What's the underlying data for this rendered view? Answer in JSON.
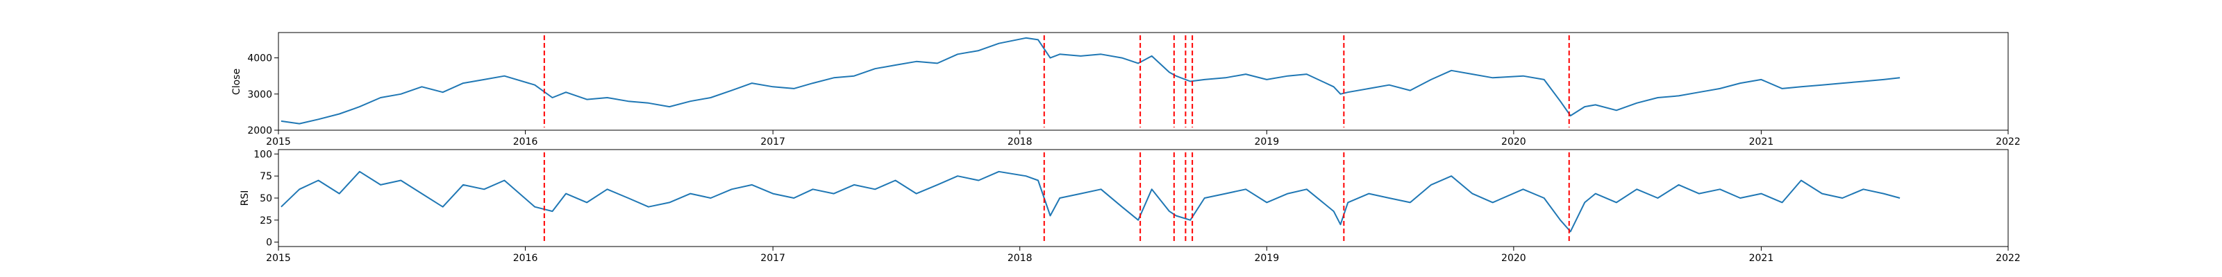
{
  "colors": {
    "line": "#1f77b4",
    "event": "#ff0000",
    "axis": "#000000",
    "background": "#ffffff"
  },
  "chart_data": [
    {
      "type": "line",
      "name": "close-panel",
      "ylabel": "Close",
      "xlabel": "",
      "xlim": [
        "2015-01-01",
        "2022-01-01"
      ],
      "ylim": [
        2000,
        4700
      ],
      "yticks": [
        2000,
        3000,
        4000
      ],
      "xticks": [
        "2015",
        "2016",
        "2017",
        "2018",
        "2019",
        "2020",
        "2021",
        "2022"
      ],
      "grid": false,
      "series": [
        {
          "x": [
            "2015-01-05",
            "2015-02-01",
            "2015-03-01",
            "2015-04-01",
            "2015-05-01",
            "2015-06-01",
            "2015-07-01",
            "2015-08-01",
            "2015-09-01",
            "2015-10-01",
            "2015-11-01",
            "2015-12-01",
            "2016-01-15",
            "2016-02-10",
            "2016-03-01",
            "2016-04-01",
            "2016-05-01",
            "2016-06-01",
            "2016-07-01",
            "2016-08-01",
            "2016-09-01",
            "2016-10-01",
            "2016-11-01",
            "2016-12-01",
            "2017-01-01",
            "2017-02-01",
            "2017-03-01",
            "2017-04-01",
            "2017-05-01",
            "2017-06-01",
            "2017-07-01",
            "2017-08-01",
            "2017-09-01",
            "2017-10-01",
            "2017-11-01",
            "2017-12-01",
            "2018-01-10",
            "2018-01-28",
            "2018-02-15",
            "2018-03-01",
            "2018-04-01",
            "2018-05-01",
            "2018-06-01",
            "2018-06-25",
            "2018-07-15",
            "2018-08-10",
            "2018-08-20",
            "2018-09-10",
            "2018-10-01",
            "2018-11-01",
            "2018-12-01",
            "2019-01-01",
            "2019-02-01",
            "2019-03-01",
            "2019-04-10",
            "2019-04-20",
            "2019-05-01",
            "2019-06-01",
            "2019-07-01",
            "2019-08-01",
            "2019-09-01",
            "2019-10-01",
            "2019-11-01",
            "2019-12-01",
            "2020-01-15",
            "2020-02-15",
            "2020-03-10",
            "2020-03-25",
            "2020-04-15",
            "2020-05-01",
            "2020-06-01",
            "2020-07-01",
            "2020-08-01",
            "2020-09-01",
            "2020-10-01",
            "2020-11-01",
            "2020-12-01",
            "2021-01-01",
            "2021-02-01",
            "2021-03-01",
            "2021-04-01",
            "2021-05-01",
            "2021-06-01",
            "2021-07-01",
            "2021-07-25"
          ],
          "values": [
            2250,
            2180,
            2300,
            2450,
            2650,
            2900,
            3000,
            3200,
            3050,
            3300,
            3400,
            3500,
            3250,
            2900,
            3050,
            2850,
            2900,
            2800,
            2750,
            2650,
            2800,
            2900,
            3100,
            3300,
            3200,
            3150,
            3300,
            3450,
            3500,
            3700,
            3800,
            3900,
            3850,
            4100,
            4200,
            4400,
            4550,
            4500,
            4000,
            4100,
            4050,
            4100,
            4000,
            3850,
            4050,
            3600,
            3500,
            3350,
            3400,
            3450,
            3550,
            3400,
            3500,
            3550,
            3200,
            3000,
            3050,
            3150,
            3250,
            3100,
            3400,
            3650,
            3550,
            3450,
            3500,
            3400,
            2800,
            2400,
            2650,
            2700,
            2550,
            2750,
            2900,
            2950,
            3050,
            3150,
            3300,
            3400,
            3150,
            3200,
            3250,
            3300,
            3350,
            3400,
            3450
          ]
        }
      ],
      "events": [
        "2016-01-29",
        "2018-02-06",
        "2018-06-28",
        "2018-08-17",
        "2018-09-03",
        "2018-09-13",
        "2019-04-25",
        "2020-03-23"
      ]
    },
    {
      "type": "line",
      "name": "rsi-panel",
      "ylabel": "RSI",
      "xlabel": "",
      "xlim": [
        "2015-01-01",
        "2022-01-01"
      ],
      "ylim": [
        -5,
        105
      ],
      "yticks": [
        0,
        25,
        50,
        75,
        100
      ],
      "xticks": [
        "2015",
        "2016",
        "2017",
        "2018",
        "2019",
        "2020",
        "2021",
        "2022"
      ],
      "grid": false,
      "series": [
        {
          "x": [
            "2015-01-05",
            "2015-02-01",
            "2015-03-01",
            "2015-04-01",
            "2015-05-01",
            "2015-06-01",
            "2015-07-01",
            "2015-08-01",
            "2015-09-01",
            "2015-10-01",
            "2015-11-01",
            "2015-12-01",
            "2016-01-15",
            "2016-02-10",
            "2016-03-01",
            "2016-04-01",
            "2016-05-01",
            "2016-06-01",
            "2016-07-01",
            "2016-08-01",
            "2016-09-01",
            "2016-10-01",
            "2016-11-01",
            "2016-12-01",
            "2017-01-01",
            "2017-02-01",
            "2017-03-01",
            "2017-04-01",
            "2017-05-01",
            "2017-06-01",
            "2017-07-01",
            "2017-08-01",
            "2017-09-01",
            "2017-10-01",
            "2017-11-01",
            "2017-12-01",
            "2018-01-10",
            "2018-01-28",
            "2018-02-15",
            "2018-03-01",
            "2018-04-01",
            "2018-05-01",
            "2018-06-01",
            "2018-06-25",
            "2018-07-15",
            "2018-08-10",
            "2018-08-20",
            "2018-09-10",
            "2018-10-01",
            "2018-11-01",
            "2018-12-01",
            "2019-01-01",
            "2019-02-01",
            "2019-03-01",
            "2019-04-10",
            "2019-04-20",
            "2019-05-01",
            "2019-06-01",
            "2019-07-01",
            "2019-08-01",
            "2019-09-01",
            "2019-10-01",
            "2019-11-01",
            "2019-12-01",
            "2020-01-15",
            "2020-02-15",
            "2020-03-10",
            "2020-03-25",
            "2020-04-15",
            "2020-05-01",
            "2020-06-01",
            "2020-07-01",
            "2020-08-01",
            "2020-09-01",
            "2020-10-01",
            "2020-11-01",
            "2020-12-01",
            "2021-01-01",
            "2021-02-01",
            "2021-03-01",
            "2021-04-01",
            "2021-05-01",
            "2021-06-01",
            "2021-07-01",
            "2021-07-25"
          ],
          "values": [
            40,
            60,
            70,
            55,
            80,
            65,
            70,
            55,
            40,
            65,
            60,
            70,
            40,
            35,
            55,
            45,
            60,
            50,
            40,
            45,
            55,
            50,
            60,
            65,
            55,
            50,
            60,
            55,
            65,
            60,
            70,
            55,
            65,
            75,
            70,
            80,
            75,
            70,
            30,
            50,
            55,
            60,
            40,
            25,
            60,
            35,
            30,
            25,
            50,
            55,
            60,
            45,
            55,
            60,
            35,
            20,
            45,
            55,
            50,
            45,
            65,
            75,
            55,
            45,
            60,
            50,
            25,
            12,
            45,
            55,
            45,
            60,
            50,
            65,
            55,
            60,
            50,
            55,
            45,
            70,
            55,
            50,
            60,
            55,
            50
          ]
        }
      ],
      "events": [
        "2016-01-29",
        "2018-02-06",
        "2018-06-28",
        "2018-08-17",
        "2018-09-03",
        "2018-09-13",
        "2019-04-25",
        "2020-03-23"
      ]
    }
  ]
}
